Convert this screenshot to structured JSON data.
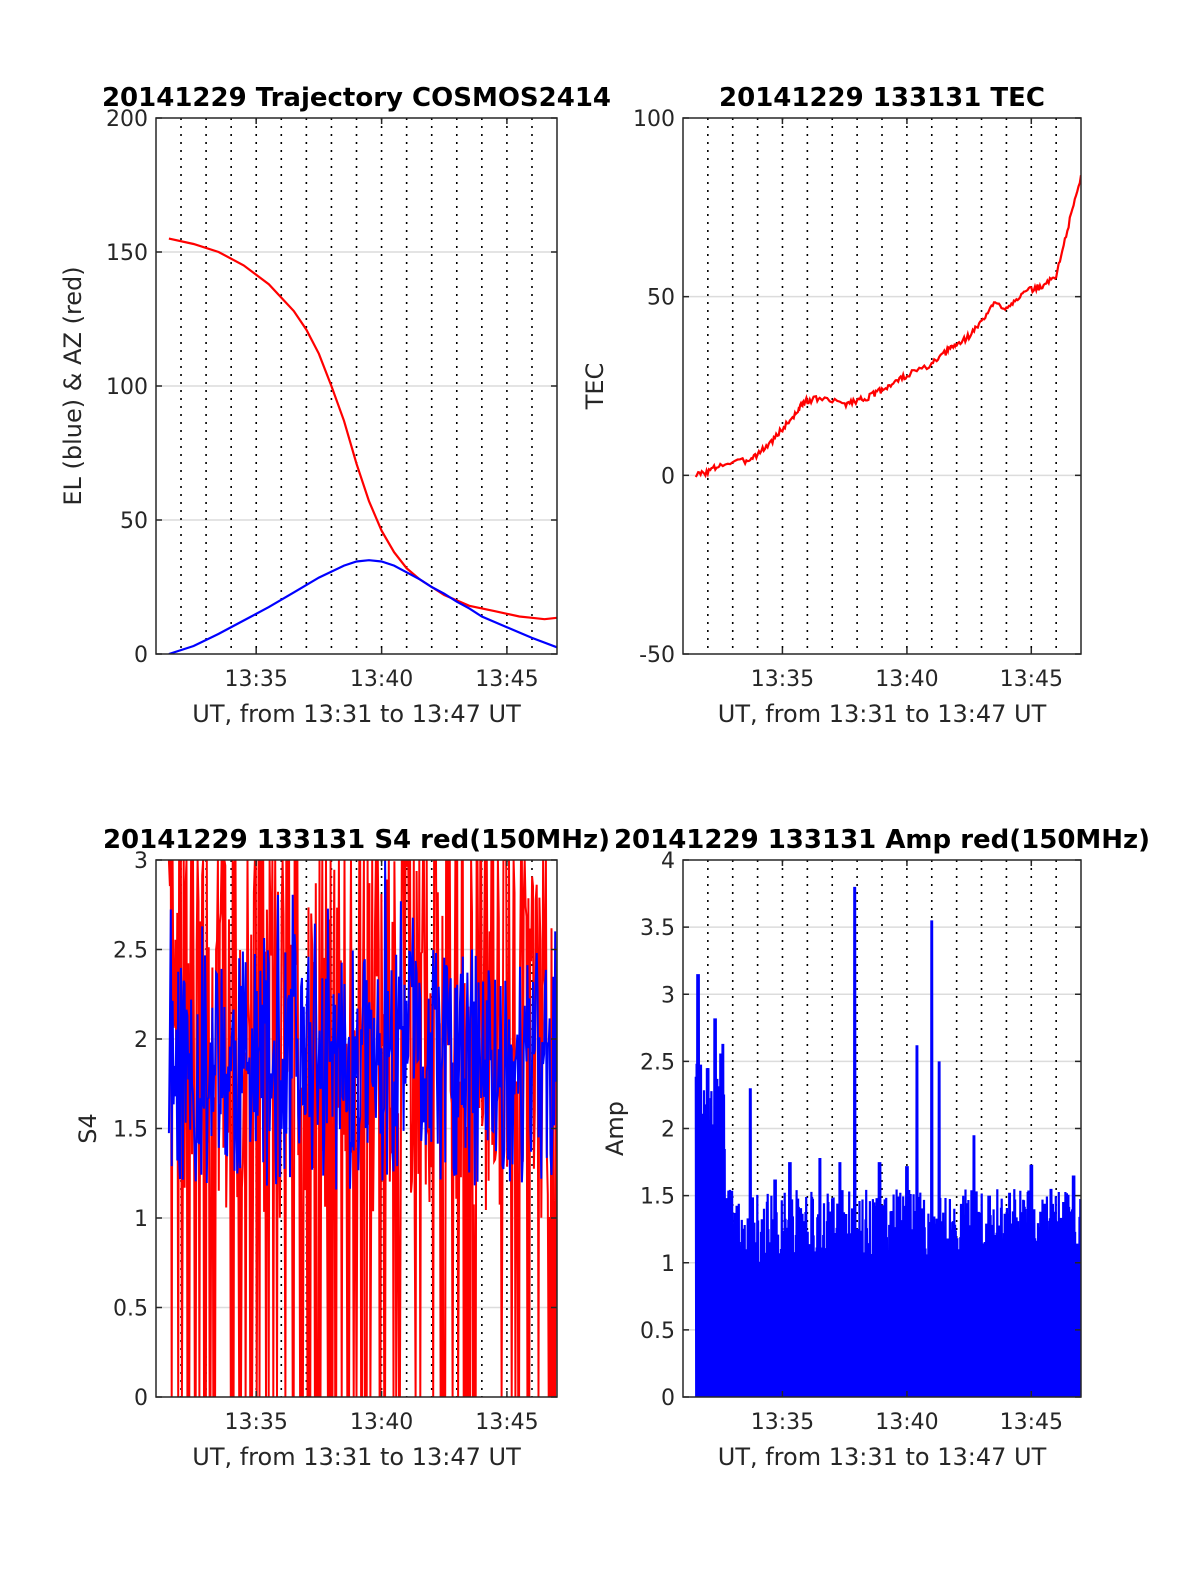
{
  "chart_data": [
    {
      "type": "line",
      "title": "20141229 Trajectory COSMOS2414",
      "xlabel": "UT, from 13:31 to 13:47 UT",
      "ylabel": "EL (blue) & AZ (red)",
      "xlim": [
        13.5167,
        13.7833
      ],
      "ylim": [
        0,
        200
      ],
      "yticks": [
        0,
        50,
        100,
        150,
        200
      ],
      "xticks": [
        13.5833,
        13.6667,
        13.75
      ],
      "xticklabels": [
        "13:35",
        "13:40",
        "13:45"
      ],
      "grid": true,
      "series": [
        {
          "color": "#ff0000",
          "x": [
            13.5253,
            13.5417,
            13.5583,
            13.575,
            13.5917,
            13.6083,
            13.6167,
            13.625,
            13.6333,
            13.6417,
            13.65,
            13.6583,
            13.6667,
            13.675,
            13.6833,
            13.6917,
            13.7,
            13.7083,
            13.7167,
            13.725,
            13.7333,
            13.7417,
            13.75,
            13.7583,
            13.7667,
            13.775,
            13.7833
          ],
          "y": [
            155,
            153,
            150,
            145,
            138,
            128,
            121,
            112,
            100,
            87,
            71,
            57,
            46,
            38,
            32,
            28,
            25,
            22,
            20,
            18,
            17,
            16,
            15,
            14,
            13.5,
            13,
            13.5
          ]
        },
        {
          "color": "#0000ff",
          "x": [
            13.5253,
            13.5417,
            13.5583,
            13.575,
            13.5917,
            13.6083,
            13.625,
            13.6417,
            13.65,
            13.6583,
            13.6667,
            13.675,
            13.6833,
            13.6917,
            13.7,
            13.7083,
            13.7167,
            13.725,
            13.7333,
            13.75,
            13.7667,
            13.7833
          ],
          "y": [
            0,
            3,
            7.5,
            12.5,
            17.5,
            23,
            28.5,
            33,
            34.5,
            35,
            34.5,
            33,
            30.5,
            28,
            25,
            22.5,
            19.5,
            17,
            14,
            10,
            6,
            2.5
          ]
        }
      ]
    },
    {
      "type": "line",
      "title": "20141229 133131 TEC",
      "xlabel": "UT, from 13:31 to 13:47 UT",
      "ylabel": "TEC",
      "xlim": [
        13.5167,
        13.7833
      ],
      "ylim": [
        -50,
        100
      ],
      "yticks": [
        -50,
        0,
        50,
        100
      ],
      "xticks": [
        13.5833,
        13.6667,
        13.75
      ],
      "xticklabels": [
        "13:35",
        "13:40",
        "13:45"
      ],
      "grid": true,
      "series": [
        {
          "color": "#ff0000",
          "x": [
            13.5253,
            13.5333,
            13.5417,
            13.5583,
            13.5667,
            13.575,
            13.5833,
            13.5917,
            13.5967,
            13.6,
            13.6083,
            13.625,
            13.6333,
            13.6417,
            13.65,
            13.6583,
            13.6667,
            13.6833,
            13.6917,
            13.6967,
            13.7,
            13.7083,
            13.7167,
            13.725,
            13.7333,
            13.7417,
            13.75,
            13.7583,
            13.7667,
            13.775,
            13.7833
          ],
          "y": [
            0,
            1,
            3,
            4,
            6,
            9,
            13,
            17,
            20,
            21,
            21.5,
            20,
            21,
            22,
            24,
            26,
            28,
            31,
            34,
            36,
            36.5,
            39,
            43,
            48,
            47,
            50,
            52,
            53,
            56,
            70,
            84
          ]
        }
      ]
    },
    {
      "type": "line",
      "title": "20141229 133131 S4 red(150MHz)",
      "xlabel": "UT, from 13:31 to 13:47 UT",
      "ylabel": "S4",
      "xlim": [
        13.5167,
        13.7833
      ],
      "ylim": [
        0,
        3
      ],
      "yticks": [
        0,
        0.5,
        1,
        1.5,
        2,
        2.5,
        3
      ],
      "xticks": [
        13.5833,
        13.6667,
        13.75
      ],
      "xticklabels": [
        "13:35",
        "13:40",
        "13:45"
      ],
      "grid": true,
      "series": [
        {
          "color": "#ff0000",
          "note_seed": 7,
          "x_start": 13.5253,
          "x_end": 13.7833,
          "y_min": 0,
          "y_max": 3,
          "samples": 420
        },
        {
          "color": "#0000ff",
          "note_seed": 11,
          "x_start": 13.5253,
          "x_end": 13.7833,
          "y_min": 1.0,
          "y_max": 3.0,
          "samples": 420
        }
      ]
    },
    {
      "type": "line",
      "title": "20141229 133131 Amp red(150MHz)",
      "xlabel": "UT, from 13:31 to 13:47 UT",
      "ylabel": "Amp",
      "xlim": [
        13.5167,
        13.7833
      ],
      "ylim": [
        0,
        4
      ],
      "yticks": [
        0,
        0.5,
        1,
        1.5,
        2,
        2.5,
        3,
        3.5,
        4
      ],
      "xticks": [
        13.5833,
        13.6667,
        13.75
      ],
      "xticklabels": [
        "13:35",
        "13:40",
        "13:45"
      ],
      "grid": true,
      "series": [
        {
          "color": "#0000ff",
          "note_seed": 5,
          "x_start": 13.5253,
          "x_end": 13.7833,
          "samples": 520,
          "peaks": [
            [
              13.5267,
              3.15
            ],
            [
              13.5333,
              2.45
            ],
            [
              13.5383,
              2.82
            ],
            [
              13.5433,
              2.63
            ],
            [
              13.5617,
              2.3
            ],
            [
              13.5783,
              1.62
            ],
            [
              13.5883,
              1.75
            ],
            [
              13.6083,
              1.78
            ],
            [
              13.6217,
              1.75
            ],
            [
              13.6317,
              3.8
            ],
            [
              13.6483,
              1.75
            ],
            [
              13.6667,
              1.72
            ],
            [
              13.6733,
              2.62
            ],
            [
              13.6833,
              3.55
            ],
            [
              13.6883,
              2.5
            ],
            [
              13.7117,
              1.95
            ],
            [
              13.7217,
              1.5
            ],
            [
              13.75,
              1.73
            ],
            [
              13.7633,
              1.55
            ],
            [
              13.7783,
              1.65
            ]
          ],
          "base_max": 1.55
        }
      ]
    }
  ]
}
